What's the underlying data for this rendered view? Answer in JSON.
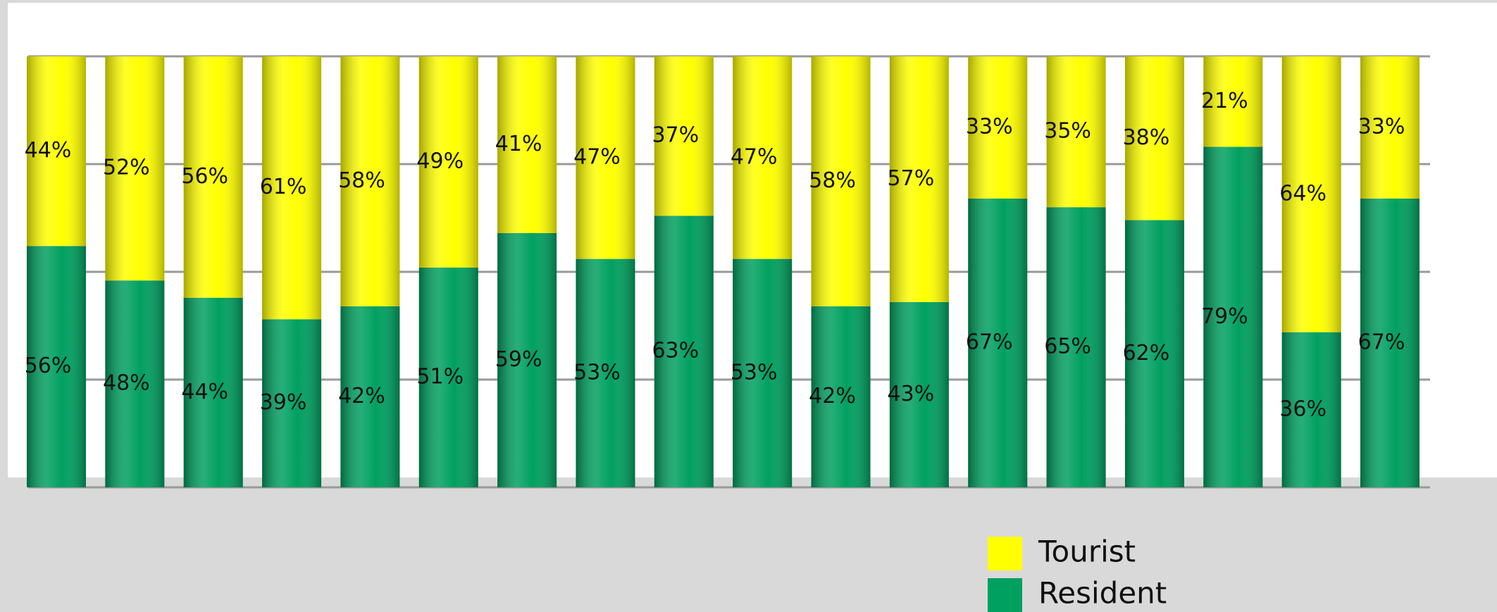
{
  "chart_data": {
    "type": "stacked_bar",
    "categories": [
      null,
      null,
      null,
      null,
      null,
      null,
      null,
      null,
      null,
      null,
      null,
      null,
      null,
      null,
      null,
      null,
      null,
      null
    ],
    "series": [
      {
        "name": "Resident",
        "color": "#00a060",
        "values": [
          56,
          48,
          44,
          39,
          42,
          51,
          59,
          53,
          63,
          53,
          42,
          43,
          67,
          65,
          62,
          79,
          36,
          67
        ],
        "value_labels": [
          "56%",
          "48%",
          "44%",
          "39%",
          "42%",
          "51%",
          "59%",
          "53%",
          "63%",
          "53%",
          "42%",
          "43%",
          "67%",
          "65%",
          "62%",
          "79%",
          "36%",
          "67%"
        ]
      },
      {
        "name": "Tourist",
        "color": "#ffff00",
        "values": [
          44,
          52,
          56,
          61,
          58,
          49,
          41,
          47,
          37,
          47,
          58,
          57,
          33,
          35,
          38,
          21,
          64,
          33
        ],
        "value_labels": [
          "44%",
          "52%",
          "56%",
          "61%",
          "58%",
          "49%",
          "41%",
          "47%",
          "37%",
          "47%",
          "58%",
          "57%",
          "33%",
          "35%",
          "38%",
          "21%",
          "64%",
          "33%"
        ]
      }
    ],
    "ylim": [
      0,
      100
    ],
    "yticks": [
      0,
      25,
      50,
      75,
      100
    ],
    "grid": true
  }
}
